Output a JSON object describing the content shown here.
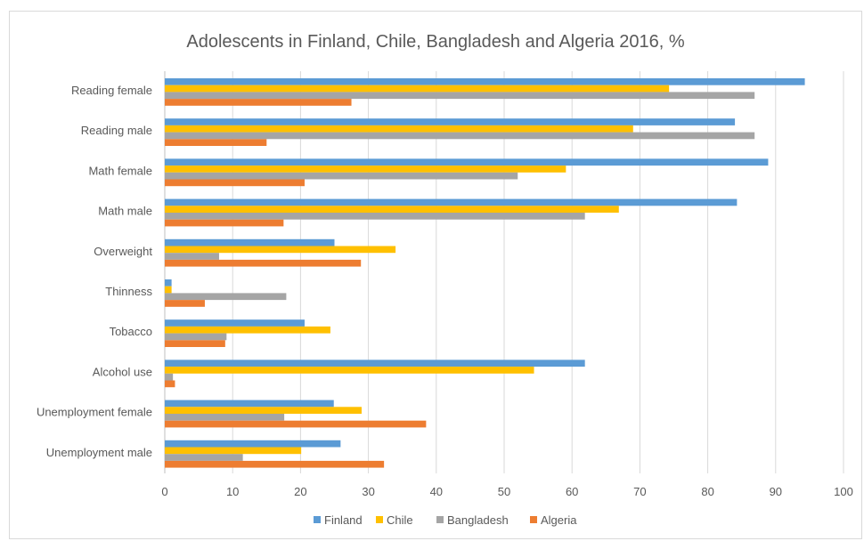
{
  "chart_data": {
    "type": "bar",
    "orientation": "horizontal",
    "title": "Adolescents in Finland, Chile, Bangladesh and Algeria 2016, %",
    "xlabel": "",
    "ylabel": "",
    "xlim": [
      0,
      100
    ],
    "ticks": [
      "0",
      "10",
      "20",
      "30",
      "40",
      "50",
      "60",
      "70",
      "80",
      "90",
      "100"
    ],
    "grid": true,
    "legend_position": "bottom",
    "categories": [
      "Reading female",
      "Reading male",
      "Math female",
      "Math male",
      "Overweight",
      "Thinness",
      "Tobacco",
      "Alcohol use",
      "Unemployment female",
      "Unemployment male"
    ],
    "series": [
      {
        "name": "Finland",
        "color": "#5b9bd5",
        "values": [
          94.3,
          84,
          88.9,
          84.3,
          25,
          1,
          20.6,
          61.9,
          24.9,
          25.9
        ]
      },
      {
        "name": "Chile",
        "color": "#ffc000",
        "values": [
          74.3,
          69,
          59.1,
          66.9,
          34,
          1,
          24.4,
          54.4,
          29,
          20.1
        ]
      },
      {
        "name": "Bangladesh",
        "color": "#a5a5a5",
        "values": [
          86.9,
          86.9,
          52,
          61.9,
          8,
          17.9,
          9.1,
          1.2,
          17.6,
          11.5
        ]
      },
      {
        "name": "Algeria",
        "color": "#ed7d31",
        "values": [
          27.5,
          15,
          20.6,
          17.5,
          28.9,
          5.9,
          8.9,
          1.5,
          38.5,
          32.3
        ]
      }
    ]
  }
}
